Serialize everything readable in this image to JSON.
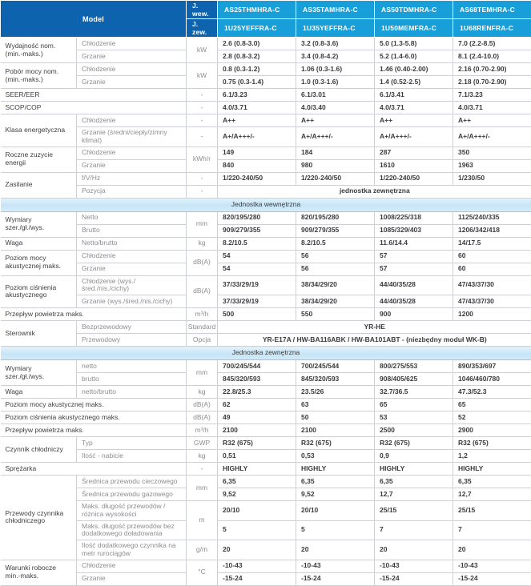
{
  "colors": {
    "header_dark_blue": "#0e63ae",
    "header_bright_blue": "#189ed9",
    "section_band_blue": "#c6e5f6",
    "grid_line": "#cdd1d5",
    "value_text": "#3b3b3b",
    "muted_text": "#8d8d8d"
  },
  "table": {
    "header": {
      "model_label": "Model",
      "unit_row_labels": [
        "J. wew.",
        "J. zew."
      ],
      "columns": [
        {
          "indoor": "AS25THMHRA-C",
          "outdoor": "1U25YEFFRA-C"
        },
        {
          "indoor": "AS35TAMHRA-C",
          "outdoor": "1U35YEFFRA-C"
        },
        {
          "indoor": "AS50TDMHRA-C",
          "outdoor": "1U50MEMFRA-C"
        },
        {
          "indoor": "AS68TEMHRA-C",
          "outdoor": "1U68RENFRA-C"
        }
      ]
    },
    "rows": [
      {
        "type": "data",
        "group": "Wydajność nom. (min.-maks.)",
        "groupSpan": 2,
        "sub": "Chłodzenie",
        "unit": "kW",
        "unitSpan": 2,
        "cells": [
          "2.6 (0.8-3.0)",
          "3.2 (0.8-3.6)",
          "5.0 (1.3-5.8)",
          "7.0 (2.2-8.5)"
        ]
      },
      {
        "type": "data",
        "sub": "Grzanie",
        "cells": [
          "2.8 (0.8-3.2)",
          "3.4 (0.8-4.2)",
          "5.2 (1.4-6.0)",
          "8.1 (2.4-10.0)"
        ]
      },
      {
        "type": "data",
        "group": "Pobór mocy nom. (min.-maks.)",
        "groupSpan": 2,
        "sub": "Chłodzenie",
        "unit": "kW",
        "unitSpan": 2,
        "cells": [
          "0.8 (0.3-1.2)",
          "1.06 (0.3-1.6)",
          "1.46 (0.40-2.00)",
          "2.16 (0.70-2.90)"
        ]
      },
      {
        "type": "data",
        "sub": "Grzanie",
        "cells": [
          "0.75 (0.3-1.4)",
          "1.0 (0.3-1.6)",
          "1.4 (0.52-2.5)",
          "2.18 (0.70-2.90)"
        ]
      },
      {
        "type": "data",
        "label": "SEER/EER",
        "unit": "-",
        "cells": [
          "6.1/3.23",
          "6.1/3.01",
          "6.1/3.41",
          "7.1/3.23"
        ]
      },
      {
        "type": "data",
        "label": "SCOP/COP",
        "unit": "-",
        "cells": [
          "4.0/3.71",
          "4.0/3.40",
          "4.0/3.71",
          "4.0/3.71"
        ]
      },
      {
        "type": "data",
        "group": "Klasa energetyczna",
        "groupSpan": 2,
        "sub": "Chłodzenie",
        "unit": "-",
        "cells": [
          "A++",
          "A++",
          "A++",
          "A++"
        ]
      },
      {
        "type": "data",
        "sub": "Grzanie (średni/ciepły/zimny klimat)",
        "unit": "-",
        "cells": [
          "A+/A+++/-",
          "A+/A+++/-",
          "A+/A+++/-",
          "A+/A+++/-"
        ]
      },
      {
        "type": "data",
        "group": "Roczne zuzycie energii",
        "groupSpan": 2,
        "sub": "Chłodzenie",
        "unit": "kWh/r",
        "unitSpan": 2,
        "cells": [
          "149",
          "184",
          "287",
          "350"
        ]
      },
      {
        "type": "data",
        "sub": "Grzanie",
        "cells": [
          "840",
          "980",
          "1610",
          "1963"
        ]
      },
      {
        "type": "data",
        "group": "Zasilanie",
        "groupSpan": 2,
        "sub": "f/V/Hz",
        "unit": "-",
        "cells": [
          "1/220-240/50",
          "1/220-240/50",
          "1/220-240/50",
          "1/230/50"
        ]
      },
      {
        "type": "data",
        "sub": "Pozycja",
        "unit": "-",
        "span": "jednostka zewnętrzna"
      },
      {
        "type": "section",
        "label": "Jednostka wewnętrzna"
      },
      {
        "type": "data",
        "group": "Wymiary szer./gł./wys.",
        "groupSpan": 2,
        "sub": "Netto",
        "unit": "mm",
        "unitSpan": 2,
        "cells": [
          "820/195/280",
          "820/195/280",
          "1008/225/318",
          "1125/240/335"
        ]
      },
      {
        "type": "data",
        "sub": "Brutto",
        "cells": [
          "909/279/355",
          "909/279/355",
          "1085/329/403",
          "1206/342/418"
        ]
      },
      {
        "type": "data",
        "group": "Waga",
        "sub": "Netto/brutto",
        "unit": "kg",
        "cells": [
          "8.2/10.5",
          "8.2/10.5",
          "11.6/14.4",
          "14/17.5"
        ]
      },
      {
        "type": "data",
        "group": "Poziom mocy akustycznej maks.",
        "groupSpan": 2,
        "sub": "Chłodzenie",
        "unit": "dB(A)",
        "unitSpan": 2,
        "cells": [
          "54",
          "56",
          "57",
          "60"
        ]
      },
      {
        "type": "data",
        "sub": "Grzanie",
        "cells": [
          "54",
          "56",
          "57",
          "60"
        ]
      },
      {
        "type": "data",
        "group": "Poziom ciśnienia akustycznego",
        "groupSpan": 2,
        "sub": "Chłodzenie (wys./śred./nis./cichy)",
        "unit": "dB(A)",
        "unitSpan": 2,
        "cells": [
          "37/33/29/19",
          "38/34/29/20",
          "44/40/35/28",
          "47/43/37/30"
        ]
      },
      {
        "type": "data",
        "sub": "Grzanie (wys./śred./nis./cichy)",
        "cells": [
          "37/33/29/19",
          "38/34/29/20",
          "44/40/35/28",
          "47/43/37/30"
        ]
      },
      {
        "type": "data",
        "label": "Przepływ powietrza maks.",
        "unit": "m³/h",
        "cells": [
          "500",
          "550",
          "900",
          "1200"
        ]
      },
      {
        "type": "data",
        "group": "Sterownik",
        "groupSpan": 2,
        "sub": "Bezprzewodowy",
        "unit": "Standard",
        "span": "YR-HE"
      },
      {
        "type": "data",
        "sub": "Przewodowy",
        "unit": "Opcja",
        "span": "YR-E17A / HW-BA116ABK / HW-BA101ABT - (niezbędny moduł WK-B)"
      },
      {
        "type": "section",
        "label": "Jednostka zewnętrzna"
      },
      {
        "type": "data",
        "group": "Wymiary szer./gł./wys.",
        "groupSpan": 2,
        "sub": "netto",
        "unit": "mm",
        "unitSpan": 2,
        "cells": [
          "700/245/544",
          "700/245/544",
          "800/275/553",
          "890/353/697"
        ]
      },
      {
        "type": "data",
        "sub": "brutto",
        "cells": [
          "845/320/593",
          "845/320/593",
          "908/405/625",
          "1046/460/780"
        ]
      },
      {
        "type": "data",
        "group": "Waga",
        "sub": "netto/brutto",
        "unit": "kg",
        "cells": [
          "22.8/25.3",
          "23.5/26",
          "32.7/36.5",
          "47.3/52.3"
        ]
      },
      {
        "type": "data",
        "label": "Poziom mocy akustycznej maks.",
        "unit": "dB(A)",
        "cells": [
          "62",
          "63",
          "65",
          "65"
        ]
      },
      {
        "type": "data",
        "label": "Poziom ciśnienia akustycznego maks.",
        "unit": "dB(A)",
        "cells": [
          "49",
          "50",
          "53",
          "52"
        ]
      },
      {
        "type": "data",
        "label": "Przepływ powietrza maks.",
        "unit": "m³/h",
        "cells": [
          "2100",
          "2100",
          "2500",
          "2900"
        ]
      },
      {
        "type": "data",
        "group": "Czynnik chłodniczy",
        "groupSpan": 2,
        "sub": "Typ",
        "unit": "GWP",
        "cells": [
          "R32 (675)",
          "R32 (675)",
          "R32 (675)",
          "R32 (675)"
        ]
      },
      {
        "type": "data",
        "sub": "Ilość - nabicie",
        "unit": "kg",
        "cells": [
          "0,51",
          "0,53",
          "0,9",
          "1,2"
        ]
      },
      {
        "type": "data",
        "label": "Sprężarka",
        "unit": "-",
        "cells": [
          "HIGHLY",
          "HIGHLY",
          "HIGHLY",
          "HIGHLY"
        ]
      },
      {
        "type": "data",
        "group": "Przewody czynnika chłodniczego",
        "groupSpan": 5,
        "sub": "Średnica przewodu cieczowego",
        "unit": "mm",
        "unitSpan": 2,
        "cells": [
          "6,35",
          "6,35",
          "6,35",
          "6,35"
        ]
      },
      {
        "type": "data",
        "sub": "Średnica przewodu gazowego",
        "cells": [
          "9,52",
          "9,52",
          "12,7",
          "12,7"
        ]
      },
      {
        "type": "data",
        "sub": "Maks. długość przewodów / różnica wysokości",
        "unit": "m",
        "unitSpan": 2,
        "cells": [
          "20/10",
          "20/10",
          "25/15",
          "25/15"
        ]
      },
      {
        "type": "data",
        "sub": "Maks. długość przewodów bez dodatkowego doładowania",
        "cells": [
          "5",
          "5",
          "7",
          "7"
        ]
      },
      {
        "type": "data",
        "sub": "Ilość dodatkowego czynnika na metr rurociągów",
        "unit": "g/m",
        "cells": [
          "20",
          "20",
          "20",
          "20"
        ]
      },
      {
        "type": "data",
        "group": "Warunki robocze min.-maks.",
        "groupSpan": 2,
        "sub": "Chłodzenie",
        "unit": "°C",
        "unitSpan": 2,
        "cells": [
          "-10-43",
          "-10-43",
          "-10-43",
          "-10-43"
        ]
      },
      {
        "type": "data",
        "sub": "Grzanie",
        "cells": [
          "-15-24",
          "-15-24",
          "-15-24",
          "-15-24"
        ]
      }
    ]
  }
}
